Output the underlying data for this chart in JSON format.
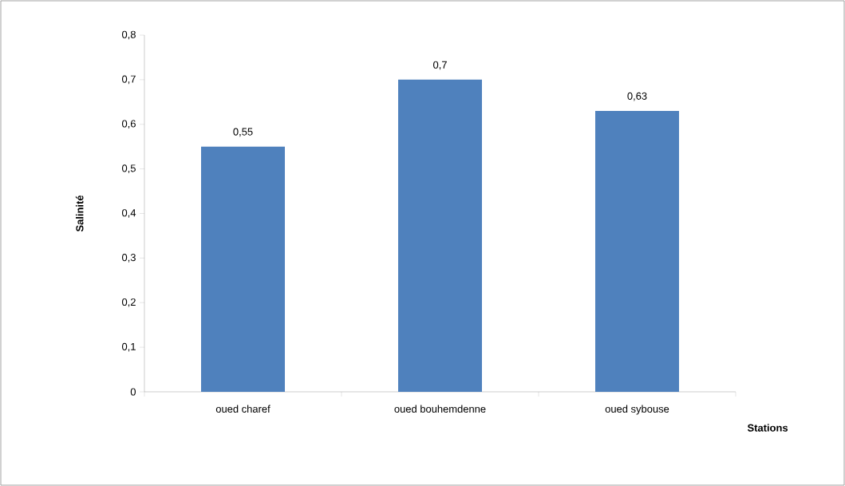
{
  "chart_data": {
    "type": "bar",
    "xlabel": "Stations",
    "ylabel": "Salinité",
    "categories": [
      "oued charef",
      "oued bouhemdenne",
      "oued sybouse"
    ],
    "values": [
      0.55,
      0.7,
      0.63
    ],
    "value_labels": [
      "0,55",
      "0,7",
      "0,63"
    ],
    "color": "#4f81bd",
    "ylim": [
      0,
      0.8
    ],
    "yticks": [
      0,
      {
        "value": 0.1,
        "label": "0,1"
      },
      {
        "value": 0.2,
        "label": "0,2"
      },
      {
        "value": 0.3,
        "label": "0,3"
      },
      {
        "value": 0.4,
        "label": "0,4"
      },
      {
        "value": 0.5,
        "label": "0,5"
      },
      {
        "value": 0.6,
        "label": "0,6"
      },
      {
        "value": 0.7,
        "label": "0,7"
      },
      {
        "value": 0.8,
        "label": "0,8"
      }
    ],
    "grid": false
  }
}
